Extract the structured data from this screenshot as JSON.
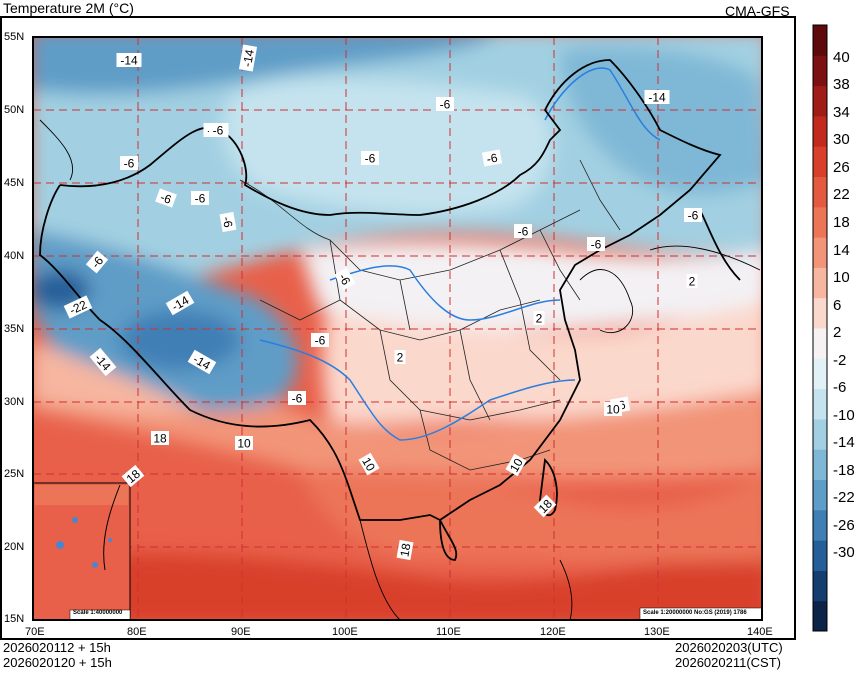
{
  "header": {
    "title": "Temperature  2M (°C)",
    "model": "CMA-GFS"
  },
  "footer": {
    "init_utc": "2026020112 + 15h",
    "init_cst": "2026020120 + 15h",
    "valid_utc": "2026020203(UTC)",
    "valid_cst": "2026020211(CST)"
  },
  "axes": {
    "lat_labels": [
      "55N",
      "50N",
      "45N",
      "40N",
      "35N",
      "30N",
      "25N",
      "20N",
      "15N"
    ],
    "lon_labels": [
      "70E",
      "80E",
      "90E",
      "100E",
      "110E",
      "120E",
      "130E",
      "140E"
    ]
  },
  "colorbar": {
    "labels": [
      "40",
      "38",
      "34",
      "30",
      "26",
      "22",
      "18",
      "14",
      "10",
      "6",
      "2",
      "-2",
      "-6",
      "-10",
      "-14",
      "-18",
      "-22",
      "-26",
      "-30"
    ],
    "colors": [
      "#5c0a0a",
      "#7d1010",
      "#a01c16",
      "#c22a1e",
      "#d8402c",
      "#e45a40",
      "#ec7558",
      "#f29478",
      "#f6b6a0",
      "#fbd8cc",
      "#f6f2f4",
      "#e2f1f6",
      "#c4e3ee",
      "#a2d0e2",
      "#7fb8d6",
      "#5e9dc7",
      "#3f7fb5",
      "#255f9a",
      "#153e70",
      "#0b2448"
    ]
  },
  "map": {
    "contour_labels": [
      "-14",
      "-14",
      "-6",
      "-14",
      "-14",
      "-6",
      "-6",
      "-6",
      "-6",
      "-6",
      "-6",
      "-6",
      "-6",
      "-6",
      "-6",
      "-6",
      "-6",
      "-22",
      "-14",
      "-14",
      "-14",
      "-6",
      "-6",
      "2",
      "2",
      "2",
      "10",
      "10",
      "10",
      "10",
      "18",
      "18",
      "18",
      "18",
      "-6"
    ],
    "inset_scale": "Scale 1:40000000",
    "main_scale": "Scale 1:20000000 No:GS (2019) 1786"
  }
}
